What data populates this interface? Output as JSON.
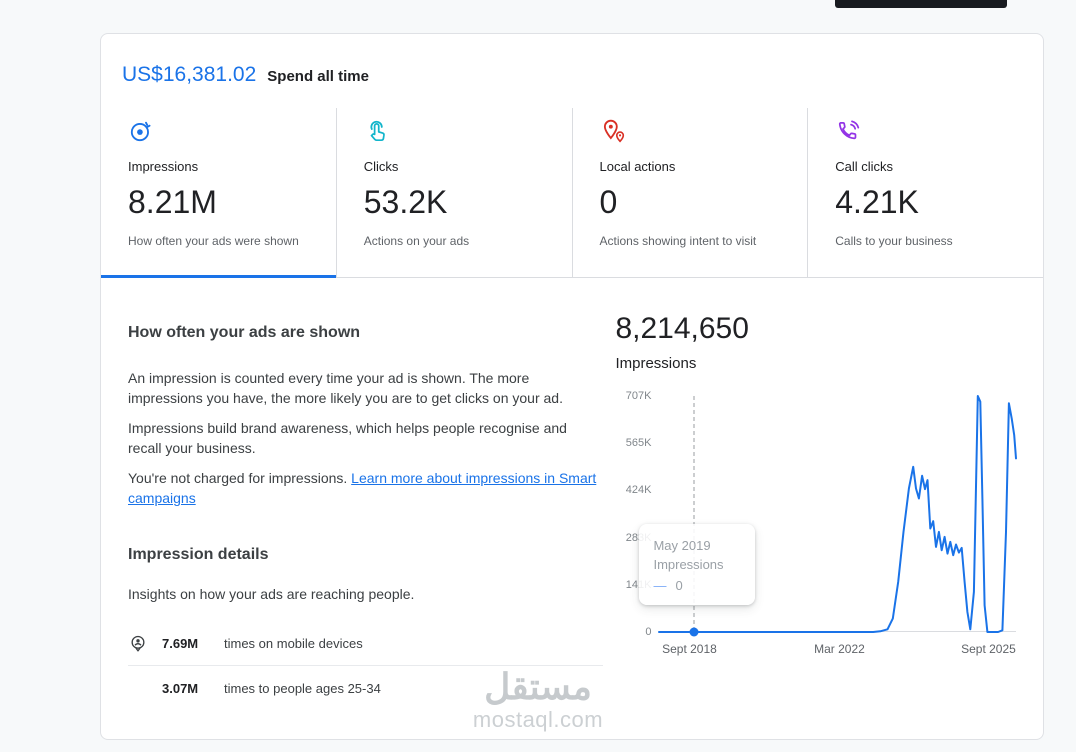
{
  "header": {
    "spend_amount": "US$16,381.02",
    "spend_label": "Spend all time"
  },
  "metrics": [
    {
      "label": "Impressions",
      "value": "8.21M",
      "description": "How often your ads were shown",
      "active": true
    },
    {
      "label": "Clicks",
      "value": "53.2K",
      "description": "Actions on your ads",
      "active": false
    },
    {
      "label": "Local actions",
      "value": "0",
      "description": "Actions showing intent to visit",
      "active": false
    },
    {
      "label": "Call clicks",
      "value": "4.21K",
      "description": "Calls to your business",
      "active": false
    }
  ],
  "impressions_section": {
    "heading": "How often your ads are shown",
    "para1": "An impression is counted every time your ad is shown. The more impressions you have, the more likely you are to get clicks on your ad.",
    "para2": "Impressions build brand awareness, which helps people recognise and recall your business.",
    "para3_text": "You're not charged for impressions. ",
    "para3_link": "Learn more about impressions in Smart campaigns",
    "details_heading": "Impression details",
    "details_desc": "Insights on how your ads are reaching people.",
    "breakdown": [
      {
        "value": "7.69M",
        "label": "times on mobile devices"
      },
      {
        "value": "3.07M",
        "label": "times to people ages 25-34"
      }
    ]
  },
  "chart": {
    "total": "8,214,650",
    "label": "Impressions",
    "y_ticks": [
      "707K",
      "565K",
      "424K",
      "283K",
      "141K",
      "0"
    ],
    "x_ticks": [
      "Sept 2018",
      "Mar 2022",
      "Sept 2025"
    ],
    "tooltip": {
      "date": "May 2019",
      "series": "Impressions",
      "dash": "—",
      "value": "0"
    }
  },
  "chart_data": {
    "type": "line",
    "title": "Impressions",
    "ylabel": "Impressions",
    "ylim": [
      0,
      707000
    ],
    "y_tick_values": [
      0,
      141000,
      283000,
      424000,
      565000,
      707000
    ],
    "x_tick_labels": [
      "Sept 2018",
      "Mar 2022",
      "Sept 2025"
    ],
    "grid": false,
    "legend": "none",
    "marker": {
      "x": 0.098,
      "label": "May 2019",
      "value": 0
    },
    "series": [
      {
        "name": "Impressions",
        "points": [
          [
            0,
            0
          ],
          [
            0.05,
            0
          ],
          [
            0.098,
            0
          ],
          [
            0.2,
            0
          ],
          [
            0.3,
            0
          ],
          [
            0.4,
            0
          ],
          [
            0.5,
            0
          ],
          [
            0.55,
            0
          ],
          [
            0.6,
            0
          ],
          [
            0.62,
            2000
          ],
          [
            0.64,
            8000
          ],
          [
            0.655,
            40000
          ],
          [
            0.67,
            150000
          ],
          [
            0.685,
            300000
          ],
          [
            0.7,
            430000
          ],
          [
            0.712,
            495000
          ],
          [
            0.72,
            430000
          ],
          [
            0.728,
            400000
          ],
          [
            0.737,
            468000
          ],
          [
            0.745,
            428000
          ],
          [
            0.752,
            455000
          ],
          [
            0.76,
            310000
          ],
          [
            0.768,
            332000
          ],
          [
            0.776,
            255000
          ],
          [
            0.784,
            300000
          ],
          [
            0.792,
            245000
          ],
          [
            0.8,
            285000
          ],
          [
            0.808,
            235000
          ],
          [
            0.816,
            270000
          ],
          [
            0.824,
            230000
          ],
          [
            0.832,
            262000
          ],
          [
            0.84,
            238000
          ],
          [
            0.848,
            252000
          ],
          [
            0.856,
            150000
          ],
          [
            0.864,
            60000
          ],
          [
            0.872,
            8000
          ],
          [
            0.882,
            120000
          ],
          [
            0.893,
            707000
          ],
          [
            0.9,
            690000
          ],
          [
            0.906,
            400000
          ],
          [
            0.912,
            80000
          ],
          [
            0.92,
            0
          ],
          [
            0.935,
            0
          ],
          [
            0.95,
            0
          ],
          [
            0.962,
            5000
          ],
          [
            0.972,
            300000
          ],
          [
            0.98,
            685000
          ],
          [
            0.988,
            640000
          ],
          [
            0.995,
            590000
          ],
          [
            1,
            520000
          ]
        ]
      }
    ]
  },
  "colors": {
    "accent_blue": "#1a73e8",
    "clicks_teal": "#12b5cb",
    "local_red": "#d93025",
    "calls_purple": "#9334e6",
    "chart_line": "#1a73e8",
    "divider": "#dadce0"
  },
  "watermark": {
    "arabic": "مستقل",
    "latin": "mostaql.com"
  }
}
